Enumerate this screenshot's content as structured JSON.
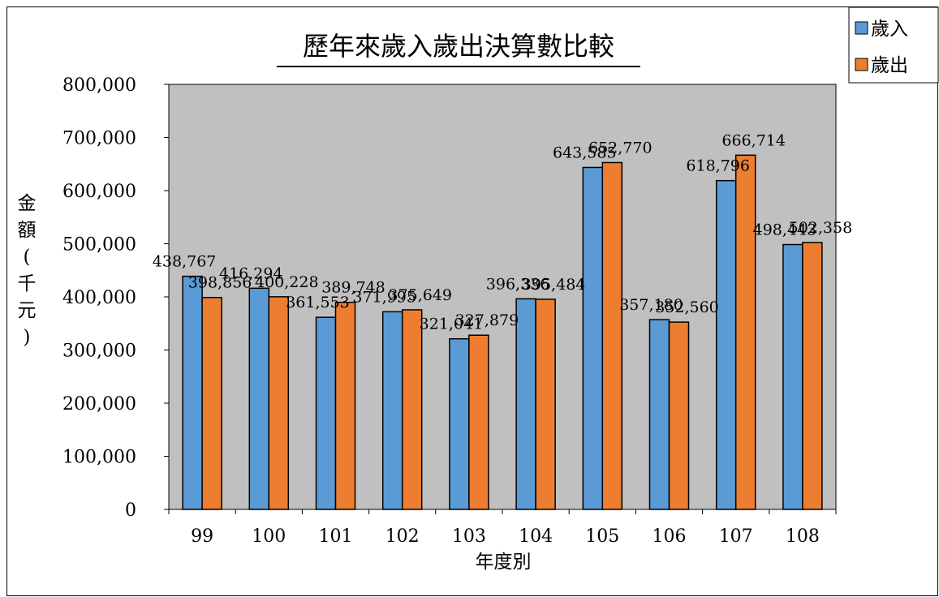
{
  "chart_data": {
    "type": "bar",
    "title": "歷年來歲入歲出決算數比較",
    "xlabel": "年度別",
    "ylabel": "金額(千元)",
    "ylabel_chars": [
      "金",
      "額",
      "(",
      "千",
      "元",
      ")"
    ],
    "categories": [
      "99",
      "100",
      "101",
      "102",
      "103",
      "104",
      "105",
      "106",
      "107",
      "108"
    ],
    "series": [
      {
        "name": "歲入",
        "color": "#5B9BD5",
        "values": [
          438767,
          416294,
          361553,
          371995,
          321041,
          396336,
          643585,
          357180,
          618796,
          498443
        ],
        "labels": [
          "438,767",
          "416,294",
          "361,553",
          "371,995",
          "321,041",
          "396,336",
          "643,585",
          "357,180",
          "618,796",
          "498,443"
        ]
      },
      {
        "name": "歲出",
        "color": "#ED7D31",
        "values": [
          398856,
          400228,
          389748,
          375649,
          327879,
          395484,
          652770,
          352560,
          666714,
          502358
        ],
        "labels": [
          "398,856",
          "400,228",
          "389,748",
          "375,649",
          "327,879",
          "395,484",
          "652,770",
          "352,560",
          "666,714",
          "502,358"
        ]
      }
    ],
    "ylim": [
      0,
      800000
    ],
    "yticks": [
      0,
      100000,
      200000,
      300000,
      400000,
      500000,
      600000,
      700000,
      800000
    ],
    "ytick_labels": [
      "0",
      "100,000",
      "200,000",
      "300,000",
      "400,000",
      "500,000",
      "600,000",
      "700,000",
      "800,000"
    ],
    "plot_background": "#C0C0C0",
    "grid": false,
    "legend_position": "top-right"
  }
}
